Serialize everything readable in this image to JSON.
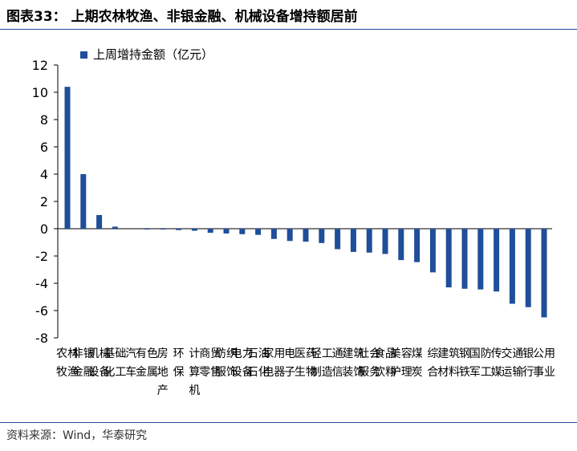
{
  "title": "图表33：  上期农林牧渔、非银金融、机械设备增持额居前",
  "source": "资料来源：Wind，华泰研究",
  "colors": {
    "bar": "#1f4e9a",
    "rule": "#1f4e9a"
  },
  "chart_data": {
    "type": "bar",
    "legend": [
      "上周增持金额（亿元）"
    ],
    "legend_position": "top-left",
    "grid": false,
    "ylim": [
      -8,
      12
    ],
    "yticks": [
      "12",
      "10",
      "8",
      "6",
      "4",
      "2",
      "0",
      "-2",
      "-4",
      "-6",
      "-8"
    ],
    "categories": [
      "农林牧渔",
      "非银金融",
      "机械设备",
      "基础化工",
      "汽车",
      "有色金属",
      "房地产",
      "环保",
      "计算机",
      "商贸零售",
      "纺织服饰",
      "电力设备",
      "石油石化",
      "家用电器",
      "电子",
      "医药生物",
      "轻工制造",
      "通信",
      "建筑装饰",
      "社会服务",
      "食品饮料",
      "美容护理",
      "煤炭",
      "综合",
      "建筑材料",
      "钢铁",
      "国防军工",
      "传媒",
      "交通运输",
      "银行",
      "公用事业"
    ],
    "values": [
      10.4,
      4.0,
      1.0,
      0.15,
      0.0,
      -0.03,
      -0.05,
      -0.1,
      -0.15,
      -0.3,
      -0.35,
      -0.4,
      -0.45,
      -0.75,
      -0.9,
      -0.95,
      -1.05,
      -1.5,
      -1.7,
      -1.75,
      -1.85,
      -2.3,
      -2.45,
      -3.2,
      -4.3,
      -4.4,
      -4.45,
      -4.6,
      -5.5,
      -5.75,
      -6.5
    ]
  }
}
